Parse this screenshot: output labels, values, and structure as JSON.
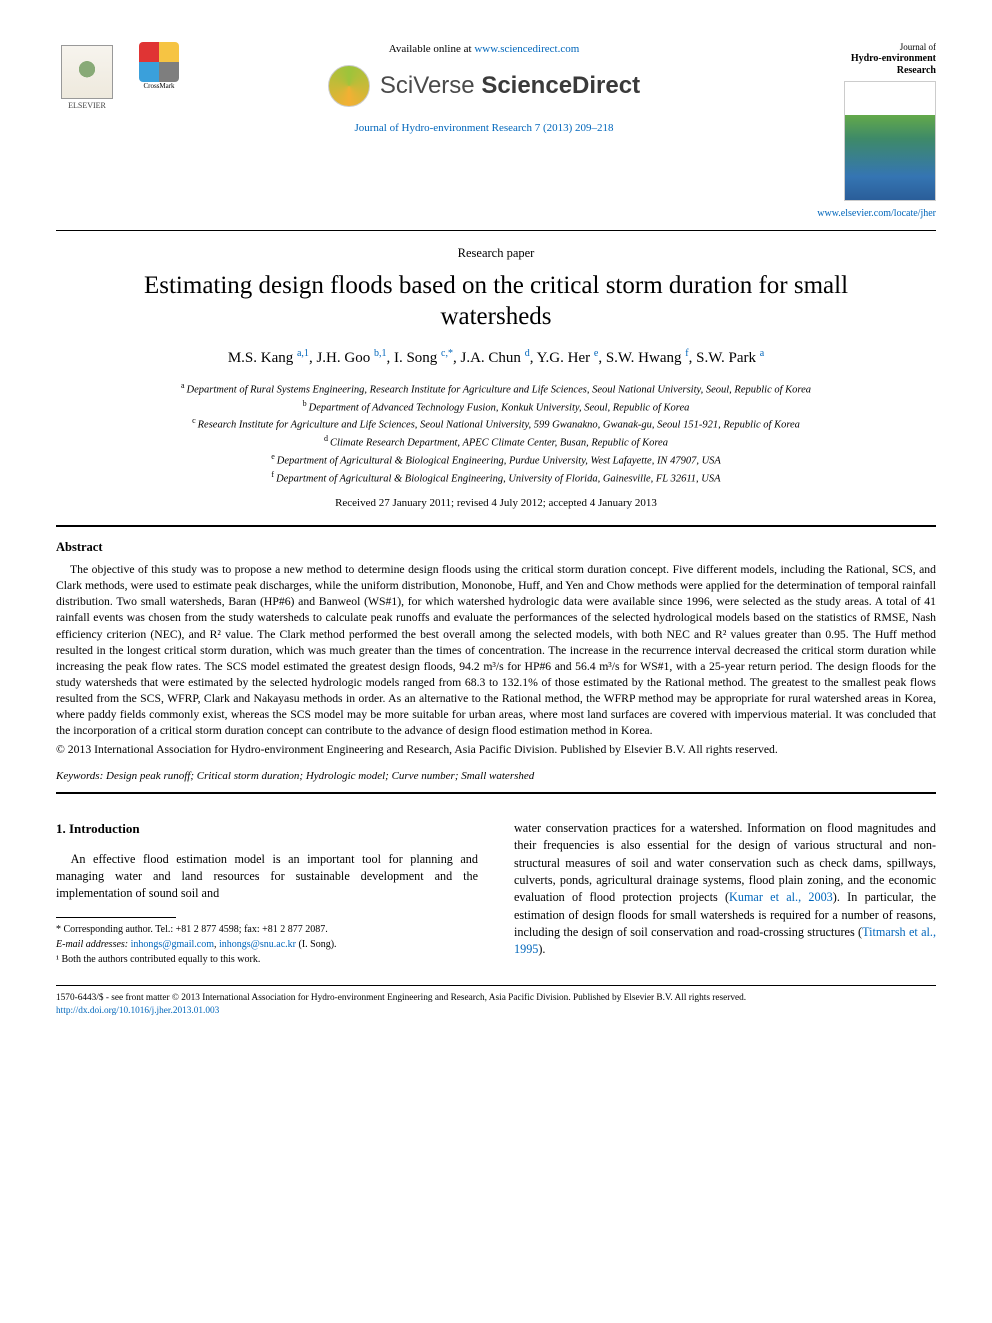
{
  "header": {
    "available_prefix": "Available online at ",
    "available_url": "www.sciencedirect.com",
    "sciverse_light": "SciVerse ",
    "sciverse_bold": "ScienceDirect",
    "journal_ref": "Journal of Hydro-environment Research 7 (2013) 209–218",
    "elsevier_label": "ELSEVIER",
    "crossmark_label": "CrossMark",
    "jher_small": "Journal of",
    "jher_bold1": "Hydro-environment",
    "jher_bold2": "Research",
    "locate_url": "www.elsevier.com/locate/jher",
    "crossmark_colors": [
      "#e03434",
      "#f6c443",
      "#3aa0db",
      "#7e7e7e"
    ]
  },
  "paper": {
    "type": "Research paper",
    "title": "Estimating design floods based on the critical storm duration for small watersheds",
    "authors_html": "M.S. Kang|a,1|, J.H. Goo|b,1|, I. Song|c,*|, J.A. Chun|d|, Y.G. Her|e|, S.W. Hwang|f|, S.W. Park|a|",
    "authors": [
      {
        "name": "M.S. Kang",
        "sup": "a,1"
      },
      {
        "name": "J.H. Goo",
        "sup": "b,1"
      },
      {
        "name": "I. Song",
        "sup": "c,*"
      },
      {
        "name": "J.A. Chun",
        "sup": "d"
      },
      {
        "name": "Y.G. Her",
        "sup": "e"
      },
      {
        "name": "S.W. Hwang",
        "sup": "f"
      },
      {
        "name": "S.W. Park",
        "sup": "a"
      }
    ],
    "affiliations": [
      {
        "sup": "a",
        "text": "Department of Rural Systems Engineering, Research Institute for Agriculture and Life Sciences, Seoul National University, Seoul, Republic of Korea"
      },
      {
        "sup": "b",
        "text": "Department of Advanced Technology Fusion, Konkuk University, Seoul, Republic of Korea"
      },
      {
        "sup": "c",
        "text": "Research Institute for Agriculture and Life Sciences, Seoul National University, 599 Gwanakno, Gwanak-gu, Seoul 151-921, Republic of Korea"
      },
      {
        "sup": "d",
        "text": "Climate Research Department, APEC Climate Center, Busan, Republic of Korea"
      },
      {
        "sup": "e",
        "text": "Department of Agricultural & Biological Engineering, Purdue University, West Lafayette, IN 47907, USA"
      },
      {
        "sup": "f",
        "text": "Department of Agricultural & Biological Engineering, University of Florida, Gainesville, FL 32611, USA"
      }
    ],
    "dates": "Received 27 January 2011; revised 4 July 2012; accepted 4 January 2013"
  },
  "abstract": {
    "heading": "Abstract",
    "body": "The objective of this study was to propose a new method to determine design floods using the critical storm duration concept. Five different models, including the Rational, SCS, and Clark methods, were used to estimate peak discharges, while the uniform distribution, Mononobe, Huff, and Yen and Chow methods were applied for the determination of temporal rainfall distribution. Two small watersheds, Baran (HP#6) and Banweol (WS#1), for which watershed hydrologic data were available since 1996, were selected as the study areas. A total of 41 rainfall events was chosen from the study watersheds to calculate peak runoffs and evaluate the performances of the selected hydrological models based on the statistics of RMSE, Nash efficiency criterion (NEC), and R² value. The Clark method performed the best overall among the selected models, with both NEC and R² values greater than 0.95. The Huff method resulted in the longest critical storm duration, which was much greater than the times of concentration. The increase in the recurrence interval decreased the critical storm duration while increasing the peak flow rates. The SCS model estimated the greatest design floods, 94.2 m³/s for HP#6 and 56.4 m³/s for WS#1, with a 25-year return period. The design floods for the study watersheds that were estimated by the selected hydrologic models ranged from 68.3 to 132.1% of those estimated by the Rational method. The greatest to the smallest peak flows resulted from the SCS, WFRP, Clark and Nakayasu methods in order. As an alternative to the Rational method, the WFRP method may be appropriate for rural watershed areas in Korea, where paddy fields commonly exist, whereas the SCS model may be more suitable for urban areas, where most land surfaces are covered with impervious material. It was concluded that the incorporation of a critical storm duration concept can contribute to the advance of design flood estimation method in Korea.",
    "copyright": "© 2013 International Association for Hydro-environment Engineering and Research, Asia Pacific Division. Published by Elsevier B.V. All rights reserved.",
    "keywords_label": "Keywords:",
    "keywords": "Design peak runoff; Critical storm duration; Hydrologic model; Curve number; Small watershed"
  },
  "intro": {
    "heading": "1. Introduction",
    "col1": "An effective flood estimation model is an important tool for planning and managing water and land resources for sustainable development and the implementation of sound soil and",
    "col2_a": "water conservation practices for a watershed. Information on flood magnitudes and their frequencies is also essential for the design of various structural and non-structural measures of soil and water conservation such as check dams, spillways, culverts, ponds, agricultural drainage systems, flood plain zoning, and the economic evaluation of flood protection projects (",
    "col2_ref1": "Kumar et al., 2003",
    "col2_b": "). In particular, the estimation of design floods for small watersheds is required for a number of reasons, including the design of soil conservation and road-crossing structures (",
    "col2_ref2": "Titmarsh et al., 1995",
    "col2_c": ")."
  },
  "footnotes": {
    "corr": "* Corresponding author. Tel.: +81 2 877 4598; fax: +81 2 877 2087.",
    "email_label": "E-mail addresses:",
    "email1": "inhongs@gmail.com",
    "email_sep": ", ",
    "email2": "inhongs@snu.ac.kr",
    "email_who": " (I. Song).",
    "note1": "¹ Both the authors contributed equally to this work."
  },
  "bottom": {
    "line1": "1570-6443/$ - see front matter © 2013 International Association for Hydro-environment Engineering and Research, Asia Pacific Division. Published by Elsevier B.V. All rights reserved.",
    "doi": "http://dx.doi.org/10.1016/j.jher.2013.01.003"
  }
}
